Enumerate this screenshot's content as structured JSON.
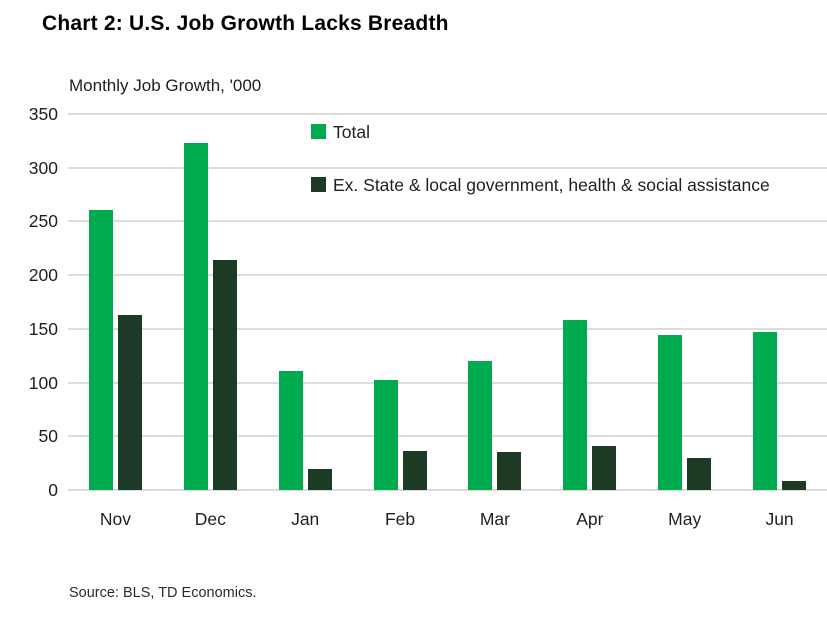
{
  "header": {
    "title": "Chart 2: U.S. Job Growth Lacks Breadth"
  },
  "chart_data": {
    "type": "bar",
    "title": "Chart 2: U.S. Job Growth Lacks Breadth",
    "subtitle": "Monthly Job Growth, '000",
    "categories": [
      "Nov",
      "Dec",
      "Jan",
      "Feb",
      "Mar",
      "Apr",
      "May",
      "Jun"
    ],
    "series": [
      {
        "name": "Total",
        "color": "#00ab50",
        "values": [
          261,
          323,
          111,
          102,
          120,
          158,
          144,
          147
        ]
      },
      {
        "name": "Ex. State & local government, health & social assistance",
        "color": "#1d3a24",
        "values": [
          163,
          214,
          20,
          36,
          35,
          41,
          30,
          8
        ]
      }
    ],
    "ylabel": "",
    "xlabel": "",
    "ylim": [
      0,
      350
    ],
    "ytick_step": 50,
    "grid": true,
    "gridline_color": "#dcdcdc",
    "legend_position": "inside-top",
    "source": "Source: BLS, TD Economics."
  }
}
